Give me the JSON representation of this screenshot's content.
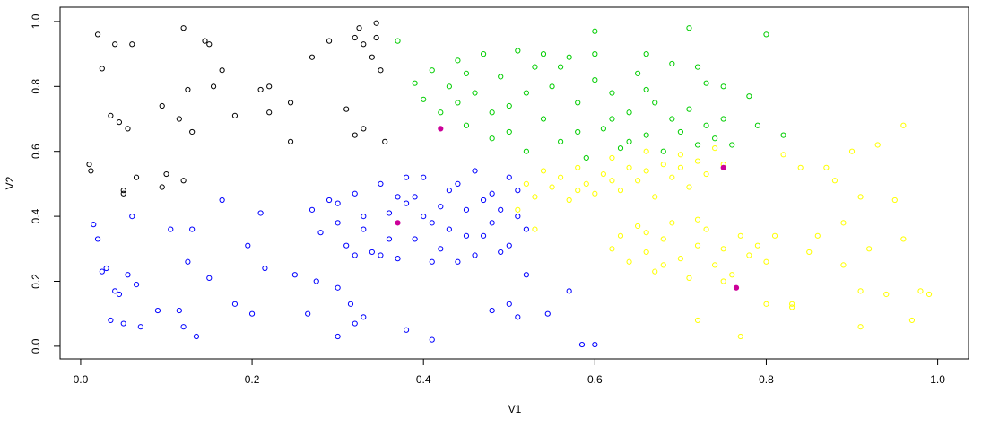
{
  "chart_data": {
    "type": "scatter",
    "x_label": "V1",
    "y_label": "V2",
    "xlim": [
      -0.024,
      1.036
    ],
    "ylim": [
      -0.039,
      1.044
    ],
    "xticks": [
      {
        "value": 0,
        "label": "0.0"
      },
      0.2,
      0.4,
      0.6,
      0.8,
      {
        "value": 1,
        "label": "1.0"
      }
    ],
    "yticks": [
      {
        "value": 0,
        "label": "0.0"
      },
      0.2,
      0.4,
      0.6,
      0.8,
      {
        "value": 1,
        "label": "1.0"
      }
    ],
    "series": [
      {
        "color": "#000000",
        "filled": false,
        "x": [
          0.02,
          0.025,
          0.04,
          0.06,
          0.035,
          0.045,
          0.055,
          0.01,
          0.012,
          0.065,
          0.05,
          0.05,
          0.1,
          0.095,
          0.12,
          0.095,
          0.115,
          0.13,
          0.125,
          0.12,
          0.145,
          0.15,
          0.165,
          0.155,
          0.18,
          0.21,
          0.22,
          0.22,
          0.245,
          0.245,
          0.27,
          0.29,
          0.31,
          0.32,
          0.325,
          0.33,
          0.34,
          0.32,
          0.345,
          0.345,
          0.35,
          0.33,
          0.355
        ],
        "y": [
          0.96,
          0.855,
          0.93,
          0.93,
          0.71,
          0.69,
          0.67,
          0.56,
          0.54,
          0.52,
          0.48,
          0.47,
          0.53,
          0.49,
          0.98,
          0.74,
          0.7,
          0.66,
          0.79,
          0.51,
          0.94,
          0.93,
          0.85,
          0.8,
          0.71,
          0.79,
          0.8,
          0.72,
          0.75,
          0.63,
          0.89,
          0.94,
          0.73,
          0.95,
          0.98,
          0.93,
          0.89,
          0.65,
          0.95,
          0.995,
          0.85,
          0.67,
          0.63
        ]
      },
      {
        "color": "#0000ff",
        "filled": false,
        "x": [
          0.015,
          0.02,
          0.03,
          0.025,
          0.035,
          0.04,
          0.045,
          0.05,
          0.06,
          0.055,
          0.065,
          0.07,
          0.09,
          0.105,
          0.115,
          0.12,
          0.125,
          0.13,
          0.135,
          0.15,
          0.165,
          0.18,
          0.195,
          0.2,
          0.21,
          0.215,
          0.25,
          0.265,
          0.275,
          0.3,
          0.3,
          0.315,
          0.32,
          0.33,
          0.38,
          0.41,
          0.48,
          0.5,
          0.51,
          0.52,
          0.545,
          0.57,
          0.585,
          0.6,
          0.27,
          0.28,
          0.29,
          0.3,
          0.31,
          0.32,
          0.33,
          0.34,
          0.35,
          0.36,
          0.37,
          0.38,
          0.39,
          0.4,
          0.41,
          0.42,
          0.43,
          0.44,
          0.45,
          0.46,
          0.47,
          0.48,
          0.49,
          0.5,
          0.51,
          0.52,
          0.3,
          0.33,
          0.36,
          0.39,
          0.42,
          0.45,
          0.48,
          0.51,
          0.35,
          0.38,
          0.41,
          0.44,
          0.47,
          0.5,
          0.4,
          0.43,
          0.46,
          0.49,
          0.32,
          0.37
        ],
        "y": [
          0.375,
          0.33,
          0.24,
          0.23,
          0.08,
          0.17,
          0.16,
          0.07,
          0.4,
          0.22,
          0.19,
          0.06,
          0.11,
          0.36,
          0.11,
          0.06,
          0.26,
          0.36,
          0.03,
          0.21,
          0.45,
          0.13,
          0.31,
          0.1,
          0.41,
          0.24,
          0.22,
          0.1,
          0.2,
          0.18,
          0.03,
          0.13,
          0.07,
          0.09,
          0.05,
          0.02,
          0.11,
          0.13,
          0.09,
          0.22,
          0.1,
          0.17,
          0.005,
          0.005,
          0.42,
          0.35,
          0.45,
          0.38,
          0.31,
          0.47,
          0.36,
          0.29,
          0.5,
          0.41,
          0.27,
          0.44,
          0.33,
          0.52,
          0.38,
          0.3,
          0.48,
          0.26,
          0.42,
          0.54,
          0.34,
          0.47,
          0.29,
          0.52,
          0.4,
          0.36,
          0.44,
          0.4,
          0.33,
          0.46,
          0.43,
          0.34,
          0.38,
          0.48,
          0.28,
          0.52,
          0.26,
          0.5,
          0.45,
          0.31,
          0.4,
          0.36,
          0.28,
          0.42,
          0.28,
          0.46
        ]
      },
      {
        "color": "#00cd00",
        "filled": false,
        "x": [
          0.39,
          0.4,
          0.41,
          0.42,
          0.43,
          0.44,
          0.45,
          0.46,
          0.47,
          0.48,
          0.49,
          0.5,
          0.51,
          0.52,
          0.53,
          0.54,
          0.55,
          0.56,
          0.57,
          0.58,
          0.59,
          0.6,
          0.61,
          0.62,
          0.63,
          0.64,
          0.65,
          0.66,
          0.67,
          0.68,
          0.69,
          0.7,
          0.71,
          0.72,
          0.73,
          0.74,
          0.75,
          0.76,
          0.45,
          0.48,
          0.52,
          0.56,
          0.58,
          0.62,
          0.66,
          0.5,
          0.54,
          0.44,
          0.6,
          0.64,
          0.37,
          0.6,
          0.66,
          0.69,
          0.71,
          0.72,
          0.75,
          0.78,
          0.8,
          0.82,
          0.79,
          0.73
        ],
        "y": [
          0.81,
          0.76,
          0.85,
          0.72,
          0.8,
          0.88,
          0.68,
          0.78,
          0.9,
          0.64,
          0.83,
          0.74,
          0.91,
          0.6,
          0.86,
          0.7,
          0.8,
          0.63,
          0.89,
          0.75,
          0.58,
          0.82,
          0.67,
          0.78,
          0.61,
          0.72,
          0.84,
          0.65,
          0.75,
          0.6,
          0.7,
          0.66,
          0.73,
          0.62,
          0.68,
          0.64,
          0.7,
          0.62,
          0.84,
          0.72,
          0.78,
          0.86,
          0.66,
          0.7,
          0.79,
          0.66,
          0.9,
          0.75,
          0.9,
          0.63,
          0.94,
          0.97,
          0.9,
          0.87,
          0.98,
          0.86,
          0.8,
          0.77,
          0.96,
          0.65,
          0.68,
          0.81
        ]
      },
      {
        "color": "#ffff00",
        "filled": false,
        "x": [
          0.52,
          0.53,
          0.54,
          0.55,
          0.56,
          0.57,
          0.58,
          0.59,
          0.6,
          0.61,
          0.62,
          0.63,
          0.64,
          0.65,
          0.66,
          0.67,
          0.68,
          0.69,
          0.7,
          0.71,
          0.72,
          0.73,
          0.74,
          0.75,
          0.58,
          0.62,
          0.66,
          0.7,
          0.51,
          0.53,
          0.62,
          0.63,
          0.64,
          0.65,
          0.66,
          0.67,
          0.68,
          0.69,
          0.7,
          0.71,
          0.72,
          0.73,
          0.74,
          0.75,
          0.76,
          0.77,
          0.78,
          0.79,
          0.8,
          0.81,
          0.68,
          0.72,
          0.66,
          0.75,
          0.82,
          0.84,
          0.83,
          0.83,
          0.85,
          0.86,
          0.87,
          0.88,
          0.89,
          0.9,
          0.91,
          0.92,
          0.93,
          0.94,
          0.95,
          0.96,
          0.97,
          0.98,
          0.99,
          0.96,
          0.91,
          0.91,
          0.72,
          0.77,
          0.8,
          0.89
        ],
        "y": [
          0.5,
          0.46,
          0.54,
          0.49,
          0.52,
          0.45,
          0.55,
          0.5,
          0.47,
          0.53,
          0.58,
          0.48,
          0.55,
          0.51,
          0.6,
          0.46,
          0.56,
          0.52,
          0.59,
          0.49,
          0.57,
          0.53,
          0.61,
          0.56,
          0.48,
          0.51,
          0.54,
          0.55,
          0.42,
          0.36,
          0.3,
          0.34,
          0.26,
          0.37,
          0.29,
          0.23,
          0.33,
          0.38,
          0.27,
          0.21,
          0.31,
          0.36,
          0.25,
          0.3,
          0.22,
          0.34,
          0.28,
          0.31,
          0.26,
          0.34,
          0.25,
          0.39,
          0.35,
          0.2,
          0.59,
          0.55,
          0.13,
          0.12,
          0.29,
          0.34,
          0.55,
          0.51,
          0.25,
          0.6,
          0.46,
          0.3,
          0.62,
          0.16,
          0.45,
          0.33,
          0.08,
          0.17,
          0.16,
          0.68,
          0.17,
          0.06,
          0.08,
          0.03,
          0.13,
          0.38
        ]
      },
      {
        "color": "#cc0099",
        "filled": true,
        "x": [
          0.37,
          0.42,
          0.75,
          0.765
        ],
        "y": [
          0.38,
          0.67,
          0.55,
          0.18
        ]
      }
    ]
  }
}
